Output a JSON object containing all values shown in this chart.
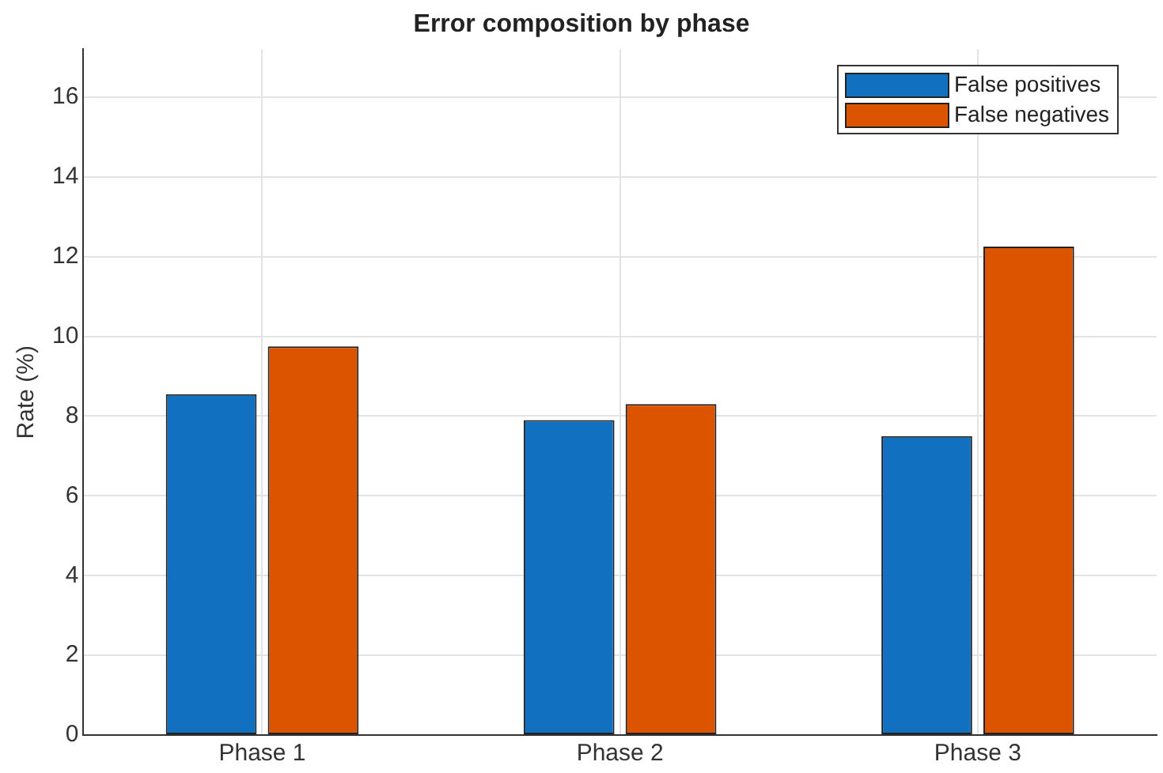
{
  "chart_data": {
    "type": "bar",
    "title": "Error composition by phase",
    "ylabel": "Rate (%)",
    "categories": [
      "Phase 1",
      "Phase 2",
      "Phase 3"
    ],
    "series": [
      {
        "name": "False positives",
        "color": "#1170c0",
        "values": [
          8.55,
          7.9,
          7.5
        ]
      },
      {
        "name": "False negatives",
        "color": "#dc5400",
        "values": [
          9.75,
          8.3,
          12.25
        ]
      }
    ],
    "ylim": [
      0,
      17.2
    ],
    "yticks": [
      0,
      2,
      4,
      6,
      8,
      10,
      12,
      14,
      16
    ],
    "grid": true,
    "legend": "top right"
  }
}
